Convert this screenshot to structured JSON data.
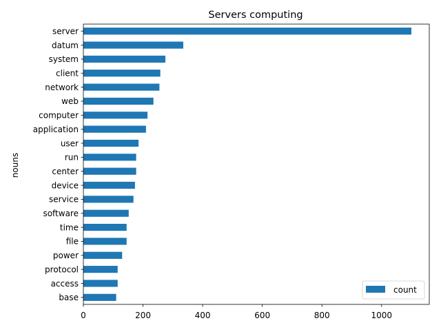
{
  "chart_data": {
    "type": "bar",
    "orientation": "horizontal",
    "title": "Servers computing",
    "xlabel": "",
    "ylabel": "nouns",
    "categories": [
      "server",
      "datum",
      "system",
      "client",
      "network",
      "web",
      "computer",
      "application",
      "user",
      "run",
      "center",
      "device",
      "service",
      "software",
      "time",
      "file",
      "power",
      "protocol",
      "access",
      "base"
    ],
    "series": [
      {
        "name": "count",
        "color": "#1f77b4",
        "values": [
          1100,
          335,
          275,
          258,
          255,
          235,
          215,
          210,
          185,
          177,
          177,
          173,
          168,
          152,
          145,
          145,
          130,
          115,
          115,
          110
        ]
      }
    ],
    "xlim": [
      0,
      1160
    ],
    "xticks": [
      0,
      200,
      400,
      600,
      800,
      1000
    ],
    "grid": false,
    "legend_position": "lower-right"
  }
}
